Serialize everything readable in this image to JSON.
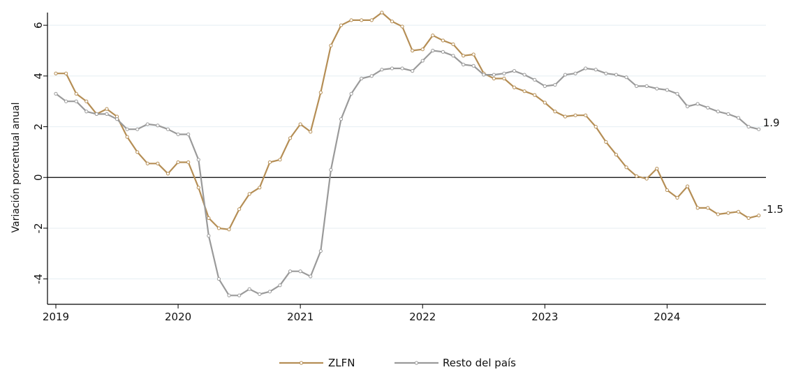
{
  "chart_data": {
    "type": "line",
    "title": "",
    "xlabel": "",
    "ylabel": "Variación porcentual anual",
    "x_start": "2019-01",
    "x_end": "2024-10",
    "x_ticks": [
      "2019",
      "2020",
      "2021",
      "2022",
      "2023",
      "2024"
    ],
    "ylim": [
      -5,
      6.5
    ],
    "y_ticks": [
      -4,
      -2,
      0,
      2,
      4,
      6
    ],
    "y_tick_labels": [
      "-4",
      "-2",
      "0",
      "2",
      "4",
      "6"
    ],
    "grid": true,
    "zero_line": true,
    "legend": "bottom-center",
    "series": [
      {
        "name": "ZLFN",
        "color": "#b58e55",
        "end_label": "-1.5",
        "values": [
          4.1,
          4.1,
          3.3,
          3.0,
          2.5,
          2.7,
          2.4,
          1.6,
          1.0,
          0.55,
          0.55,
          0.15,
          0.6,
          0.6,
          -0.4,
          -1.6,
          -2.0,
          -2.05,
          -1.25,
          -0.65,
          -0.4,
          0.6,
          0.7,
          1.55,
          2.1,
          1.8,
          3.35,
          5.2,
          6.0,
          6.2,
          6.2,
          6.2,
          6.5,
          6.15,
          5.95,
          5.0,
          5.05,
          5.6,
          5.4,
          5.25,
          4.8,
          4.85,
          4.1,
          3.9,
          3.9,
          3.55,
          3.4,
          3.25,
          2.95,
          2.6,
          2.4,
          2.45,
          2.45,
          2.0,
          1.4,
          0.9,
          0.4,
          0.05,
          -0.05,
          0.35,
          -0.5,
          -0.8,
          -0.35,
          -1.2,
          -1.2,
          -1.45,
          -1.4,
          -1.35,
          -1.6,
          -1.5
        ]
      },
      {
        "name": "Resto del país",
        "color": "#9a9a9a",
        "end_label": "1.9",
        "values": [
          3.3,
          3.0,
          3.0,
          2.6,
          2.5,
          2.5,
          2.3,
          1.9,
          1.9,
          2.1,
          2.05,
          1.9,
          1.7,
          1.7,
          0.7,
          -2.3,
          -4.0,
          -4.65,
          -4.65,
          -4.4,
          -4.6,
          -4.5,
          -4.25,
          -3.7,
          -3.7,
          -3.9,
          -2.9,
          0.3,
          2.3,
          3.3,
          3.9,
          4.0,
          4.25,
          4.3,
          4.3,
          4.2,
          4.6,
          5.0,
          4.95,
          4.8,
          4.45,
          4.4,
          4.05,
          4.05,
          4.1,
          4.2,
          4.05,
          3.85,
          3.6,
          3.65,
          4.05,
          4.1,
          4.3,
          4.25,
          4.1,
          4.05,
          3.95,
          3.6,
          3.6,
          3.5,
          3.45,
          3.3,
          2.8,
          2.9,
          2.75,
          2.6,
          2.5,
          2.35,
          2.0,
          1.9
        ]
      }
    ]
  }
}
